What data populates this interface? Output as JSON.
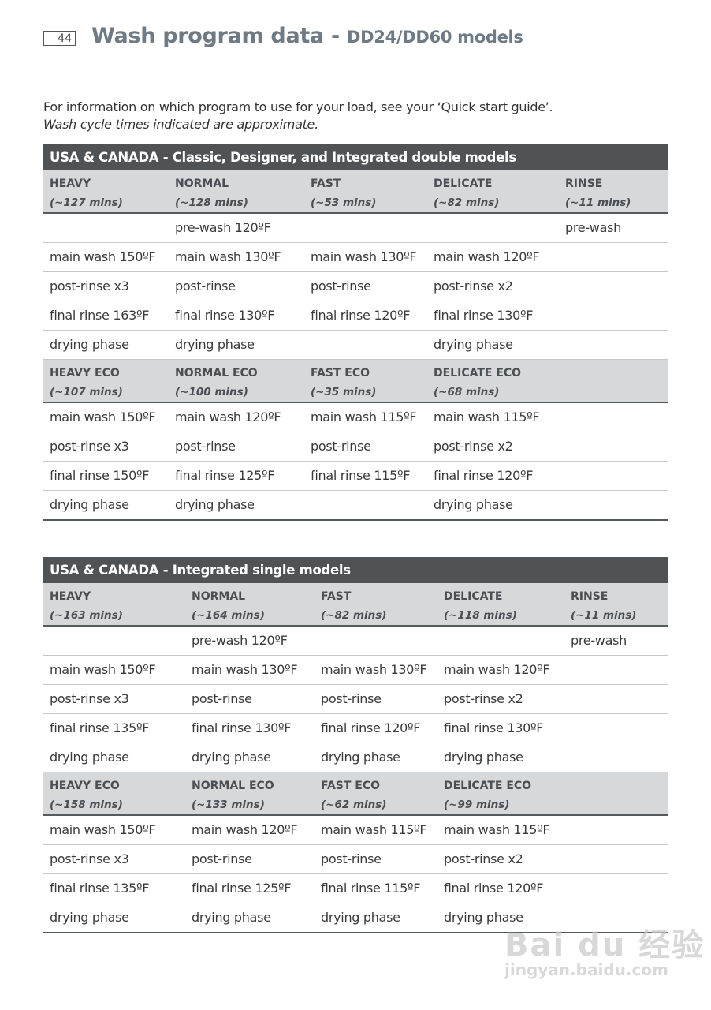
{
  "page_number": "44",
  "title": "Wash program data - ",
  "title_sub": "DD24/DD60 models",
  "intro": "For information on which program to use for your load, see your ‘Quick start guide’.",
  "intro_italic": "Wash cycle times indicated are approximate.",
  "watermark": {
    "brand": "Bai du 经验",
    "url": "jingyan.baidu.com"
  },
  "tables": [
    {
      "title": "USA & CANADA - Classic, Designer, and Integrated double models",
      "sections": [
        {
          "headers": [
            {
              "name": "HEAVY",
              "time": "(~127 mins)"
            },
            {
              "name": "NORMAL",
              "time": "(~128 mins)"
            },
            {
              "name": "FAST",
              "time": "(~53 mins)"
            },
            {
              "name": "DELICATE",
              "time": "(~82 mins)"
            },
            {
              "name": "RINSE",
              "time": "(~11 mins)"
            }
          ],
          "rows": [
            [
              "",
              "pre-wash 120ºF",
              "",
              "",
              "pre-wash"
            ],
            [
              "main wash 150ºF",
              "main wash 130ºF",
              "main wash 130ºF",
              "main wash 120ºF",
              ""
            ],
            [
              "post-rinse x3",
              "post-rinse",
              "post-rinse",
              "post-rinse x2",
              ""
            ],
            [
              "final rinse 163ºF",
              "final rinse 130ºF",
              "final rinse 120ºF",
              "final rinse 130ºF",
              ""
            ],
            [
              "drying phase",
              "drying phase",
              "",
              "drying phase",
              ""
            ]
          ]
        },
        {
          "headers": [
            {
              "name": "HEAVY ECO",
              "time": "(~107 mins)"
            },
            {
              "name": "NORMAL ECO",
              "time": "(~100 mins)"
            },
            {
              "name": "FAST ECO",
              "time": "(~35 mins)"
            },
            {
              "name": "DELICATE ECO",
              "time": "(~68 mins)"
            },
            {
              "name": "",
              "time": ""
            }
          ],
          "rows": [
            [
              "main wash 150ºF",
              "main wash 120ºF",
              "main wash 115ºF",
              "main wash 115ºF",
              ""
            ],
            [
              "post-rinse x3",
              "post-rinse",
              "post-rinse",
              "post-rinse x2",
              ""
            ],
            [
              "final rinse 150ºF",
              "final rinse 125ºF",
              "final rinse 115ºF",
              "final rinse 120ºF",
              ""
            ],
            [
              "drying phase",
              "drying phase",
              "",
              "drying phase",
              ""
            ]
          ]
        }
      ]
    },
    {
      "title": "USA & CANADA - Integrated single models",
      "sections": [
        {
          "headers": [
            {
              "name": "HEAVY",
              "time": "(~163 mins)"
            },
            {
              "name": "NORMAL",
              "time": "(~164 mins)"
            },
            {
              "name": "FAST",
              "time": "(~82 mins)"
            },
            {
              "name": "DELICATE",
              "time": "(~118 mins)"
            },
            {
              "name": "RINSE",
              "time": "(~11 mins)"
            }
          ],
          "rows": [
            [
              "",
              "pre-wash 120ºF",
              "",
              "",
              "pre-wash"
            ],
            [
              "main wash 150ºF",
              "main wash 130ºF",
              "main wash 130ºF",
              "main wash 120ºF",
              ""
            ],
            [
              "post-rinse x3",
              "post-rinse",
              "post-rinse",
              "post-rinse x2",
              ""
            ],
            [
              "final rinse 135ºF",
              "final rinse 130ºF",
              "final rinse 120ºF",
              "final rinse 130ºF",
              ""
            ],
            [
              "drying phase",
              "drying phase",
              "drying phase",
              "drying phase",
              ""
            ]
          ]
        },
        {
          "headers": [
            {
              "name": "HEAVY ECO",
              "time": "(~158 mins)"
            },
            {
              "name": "NORMAL ECO",
              "time": "(~133 mins)"
            },
            {
              "name": "FAST ECO",
              "time": "(~62 mins)"
            },
            {
              "name": "DELICATE ECO",
              "time": "(~99 mins)"
            },
            {
              "name": "",
              "time": ""
            }
          ],
          "rows": [
            [
              "main wash 150ºF",
              "main wash 120ºF",
              "main wash 115ºF",
              "main wash 115ºF",
              ""
            ],
            [
              "post-rinse x3",
              "post-rinse",
              "post-rinse",
              "post-rinse x2",
              ""
            ],
            [
              "final rinse 135ºF",
              "final rinse 125ºF",
              "final rinse 115ºF",
              "final rinse 120ºF",
              ""
            ],
            [
              "drying phase",
              "drying phase",
              "drying phase",
              "drying phase",
              ""
            ]
          ]
        }
      ]
    }
  ]
}
